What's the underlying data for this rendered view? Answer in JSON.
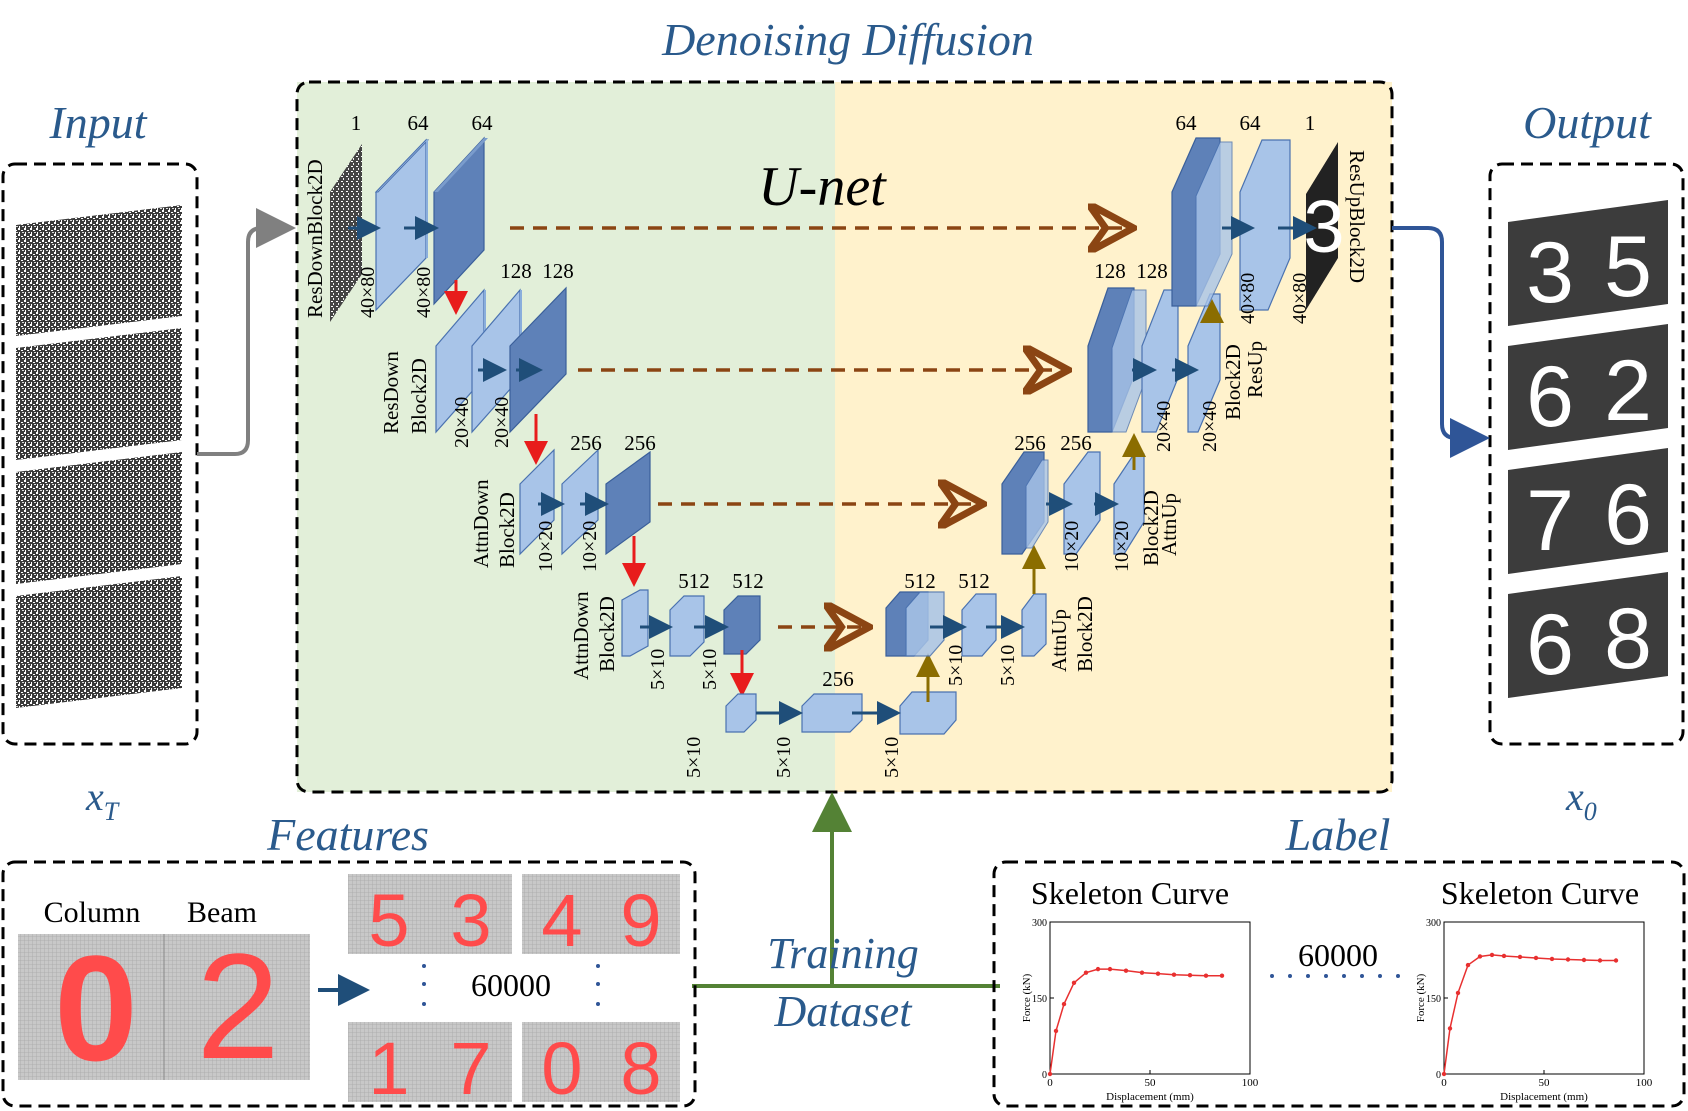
{
  "titles": {
    "denoising": "Denoising Diffusion",
    "input": "Input",
    "output": "Output",
    "unet": "U-net",
    "features": "Features",
    "label": "Label",
    "training_1": "Training",
    "training_2": "Dataset"
  },
  "math": {
    "x_T_base": "x",
    "x_T_sub": "T",
    "x_0_base": "x",
    "x_0_sub": "0"
  },
  "blocks": {
    "resdown2d": "ResDownBlock2D",
    "resdown_1": "ResDown",
    "resdown_2": "Block2D",
    "attndown_a1": "AttnDown",
    "attndown_a2": "Block2D",
    "attndown_b1": "AttnDown",
    "attndown_b2": "Block2D",
    "attnup_a1": "AttnUp",
    "attnup_a2": "Block2D",
    "attnup_b1": "AttnUp",
    "attnup_b2": "Block2D",
    "resup_1": "ResUp",
    "resup_2": "Block2D",
    "resup2d": "ResUpBlock2D"
  },
  "channels": {
    "c1": "1",
    "c64a": "64",
    "c64b": "64",
    "c128a": "128",
    "c128b": "128",
    "c256a": "256",
    "c256b": "256",
    "c512a": "512",
    "c512b": "512",
    "c256mid": "256",
    "u512a": "512",
    "u512b": "512",
    "u256a": "256",
    "u256b": "256",
    "u128a": "128",
    "u128b": "128",
    "u64a": "64",
    "u64b": "64",
    "u1": "1"
  },
  "dims": {
    "d40x80": "40×80",
    "d20x40": "20×40",
    "d10x20": "10×20",
    "d5x10": "5×10"
  },
  "features": {
    "column": "Column",
    "beam": "Beam",
    "count": "60000",
    "digits": [
      "5",
      "3",
      "4",
      "9",
      "1",
      "7",
      "0",
      "8"
    ],
    "sample_digits": [
      "0",
      "2"
    ]
  },
  "output_digits": [
    "3",
    "5",
    "6",
    "2",
    "7",
    "6",
    "6",
    "8"
  ],
  "label_panel": {
    "title_left": "Skeleton Curve",
    "title_right": "Skeleton Curve",
    "count": "60000"
  },
  "chart_data": [
    {
      "type": "line",
      "xlabel": "Displacement (mm)",
      "ylabel": "Force (kN)",
      "xlim": [
        0,
        100
      ],
      "ylim": [
        0,
        300
      ],
      "xticks": [
        "0",
        "50",
        "100"
      ],
      "yticks": [
        "0",
        "150",
        "300"
      ],
      "x": [
        0,
        3,
        7,
        12,
        18,
        24,
        30,
        38,
        46,
        54,
        62,
        70,
        78,
        86
      ],
      "y": [
        0,
        85,
        138,
        180,
        200,
        207,
        207,
        204,
        200,
        198,
        196,
        195,
        194,
        194
      ],
      "color": "#e83030"
    },
    {
      "type": "line",
      "xlabel": "Displacement (mm)",
      "ylabel": "Force (kN)",
      "xlim": [
        0,
        100
      ],
      "ylim": [
        0,
        300
      ],
      "xticks": [
        "0",
        "50",
        "100"
      ],
      "yticks": [
        "0",
        "150",
        "300"
      ],
      "x": [
        0,
        3,
        7,
        12,
        18,
        24,
        30,
        38,
        46,
        54,
        62,
        70,
        78,
        86
      ],
      "y": [
        0,
        90,
        160,
        215,
        232,
        235,
        233,
        231,
        229,
        227,
        226,
        225,
        224,
        224
      ],
      "color": "#e83030"
    }
  ],
  "colors": {
    "title_blue": "#2a5a8c",
    "green_panel": "#e2efd9",
    "yellow_panel": "#fff2cc",
    "block_light": "#a8c4e8",
    "block_dark": "#5e81b8",
    "skip_arrow": "#8b4513",
    "down_arrow": "#e81c1c",
    "up_arrow": "#8b6d00",
    "green_line": "#548235"
  }
}
